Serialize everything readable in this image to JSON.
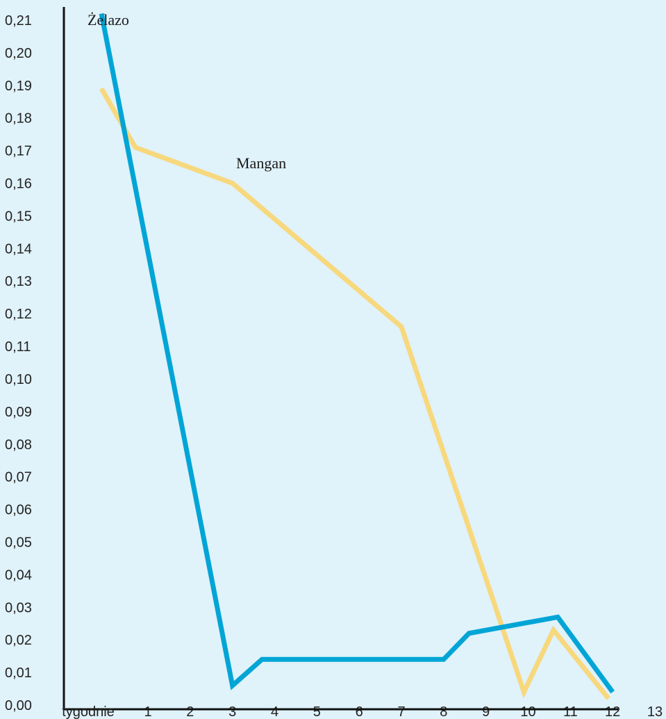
{
  "chart_data": {
    "type": "line",
    "title": "",
    "xlabel": "tygodnie",
    "ylabel": "",
    "ylim": [
      0.0,
      0.21
    ],
    "y_ticks": [
      "0,00",
      "0,01",
      "0,02",
      "0,03",
      "0,04",
      "0,05",
      "0,06",
      "0,07",
      "0,08",
      "0,09",
      "0,10",
      "0,11",
      "0,12",
      "0,13",
      "0,14",
      "0,15",
      "0,16",
      "0,17",
      "0,18",
      "0,19",
      "0,20",
      "0,21"
    ],
    "x_ticks": [
      "1",
      "2",
      "3",
      "4",
      "5",
      "6",
      "7",
      "8",
      "9",
      "10",
      "11",
      "12",
      "13"
    ],
    "x_tick_values": [
      1,
      2,
      3,
      4,
      5,
      6,
      7,
      8,
      9,
      10,
      11,
      12,
      13
    ],
    "xlim": [
      -0.2,
      13
    ],
    "grid": false,
    "series": [
      {
        "name": "Żelazo",
        "color": "#00a5d6",
        "x": [
          -0.1,
          3.0,
          3.7,
          8.0,
          8.6,
          10.7,
          12.0
        ],
        "y": [
          0.212,
          0.006,
          0.014,
          0.014,
          0.022,
          0.027,
          0.004
        ]
      },
      {
        "name": "Mangan",
        "color": "#f7d87d",
        "x": [
          -0.1,
          0.7,
          3.0,
          7.0,
          9.9,
          10.6,
          11.9
        ],
        "y": [
          0.189,
          0.171,
          0.16,
          0.116,
          0.004,
          0.023,
          0.002
        ]
      }
    ]
  }
}
